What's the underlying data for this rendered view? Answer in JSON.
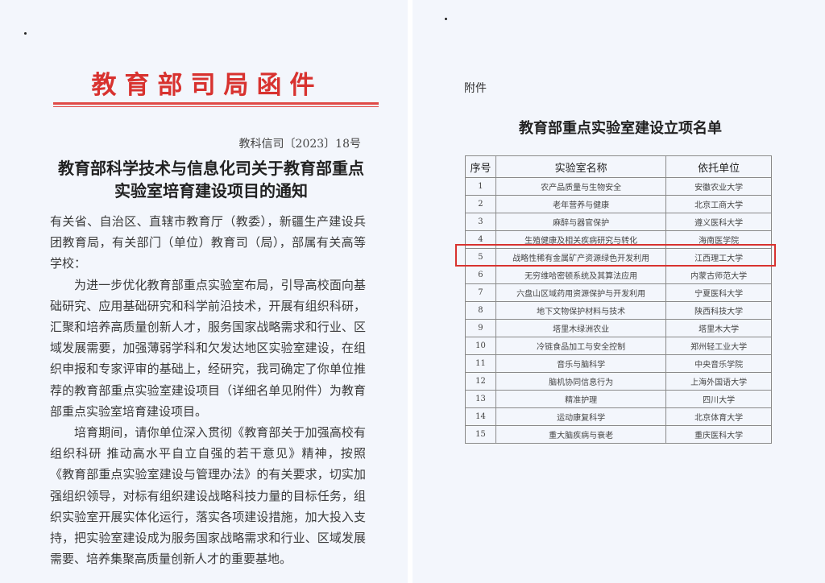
{
  "left_page": {
    "header": "教育部司局函件",
    "doc_number": "教科信司〔2023〕18号",
    "title_lines": [
      "教育部科学技术与信息化司关于教育部重点",
      "实验室培育建设项目的通知"
    ],
    "salutation": "有关省、自治区、直辖市教育厅（教委），新疆生产建设兵团教育局，有关部门（单位）教育司（局），部属有关高等学校：",
    "paragraphs": [
      "为进一步优化教育部重点实验室布局，引导高校面向基础研究、应用基础研究和科学前沿技术，开展有组织科研，汇聚和培养高质量创新人才，服务国家战略需求和行业、区域发展需要，加强薄弱学科和欠发达地区实验室建设，在组织申报和专家评审的基础上，经研究，我司确定了你单位推荐的教育部重点实验室建设项目（详细名单见附件）为教育部重点实验室培育建设项目。",
      "培育期间，请你单位深入贯彻《教育部关于加强高校有组织科研 推动高水平自立自强的若干意见》精神，按照《教育部重点实验室建设与管理办法》的有关要求，切实加强组织领导，对标有组织建设战略科技力量的目标任务，组织实验室开展实体化运行，落实各项建设措施，加大投入支持，把实验室建设成为服务国家战略需求和行业、区域发展需要、培养集聚高质量创新人才的重要基地。"
    ]
  },
  "right_page": {
    "attachment_label": "附件",
    "title": "教育部重点实验室建设立项名单",
    "columns": [
      "序号",
      "实验室名称",
      "依托单位"
    ],
    "rows": [
      [
        "1",
        "农产品质量与生物安全",
        "安徽农业大学"
      ],
      [
        "2",
        "老年营养与健康",
        "北京工商大学"
      ],
      [
        "3",
        "麻醉与器官保护",
        "遵义医科大学"
      ],
      [
        "4",
        "生殖健康及相关疾病研究与转化",
        "海南医学院"
      ],
      [
        "5",
        "战略性稀有金属矿产资源绿色开发利用",
        "江西理工大学"
      ],
      [
        "6",
        "无穷维哈密顿系统及其算法应用",
        "内蒙古师范大学"
      ],
      [
        "7",
        "六盘山区域药用资源保护与开发利用",
        "宁夏医科大学"
      ],
      [
        "8",
        "地下文物保护材料与技术",
        "陕西科技大学"
      ],
      [
        "9",
        "塔里木绿洲农业",
        "塔里木大学"
      ],
      [
        "10",
        "冷链食品加工与安全控制",
        "郑州轻工业大学"
      ],
      [
        "11",
        "音乐与脑科学",
        "中央音乐学院"
      ],
      [
        "12",
        "脑机协同信息行为",
        "上海外国语大学"
      ],
      [
        "13",
        "精准护理",
        "四川大学"
      ],
      [
        "14",
        "运动康复科学",
        "北京体育大学"
      ],
      [
        "15",
        "重大脑疾病与衰老",
        "重庆医科大学"
      ]
    ],
    "highlighted_row": "5",
    "highlight_color": "#d8322f"
  }
}
